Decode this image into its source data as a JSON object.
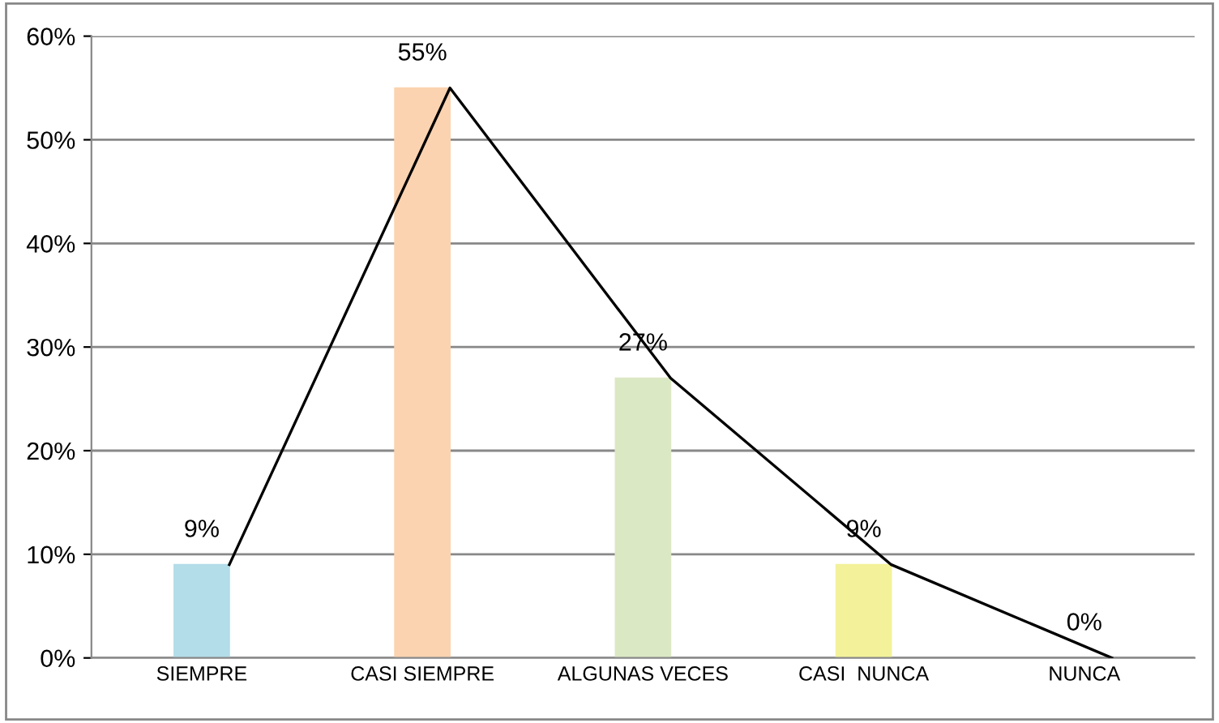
{
  "chart_data": {
    "type": "bar",
    "categories": [
      "SIEMPRE",
      "CASI SIEMPRE",
      "ALGUNAS VECES",
      "CASI  NUNCA",
      "NUNCA"
    ],
    "series": [
      {
        "colors": [
          "#b3dde8",
          "#fbd3b0",
          "#dbe8c4",
          "#f3f29a",
          "#ffffff"
        ],
        "values": [
          9,
          55,
          27,
          9,
          0
        ],
        "value_labels": [
          "9%",
          "55%",
          "27%",
          "9%",
          "0%"
        ]
      },
      {
        "type": "line",
        "color": "#000000",
        "values": [
          9,
          55,
          27,
          9,
          0
        ]
      }
    ],
    "ylim": [
      0,
      60
    ],
    "yticks": [
      {
        "value": 0,
        "label": "0%"
      },
      {
        "value": 10,
        "label": "10%"
      },
      {
        "value": 20,
        "label": "20%"
      },
      {
        "value": 30,
        "label": "30%"
      },
      {
        "value": 40,
        "label": "40%"
      },
      {
        "value": 50,
        "label": "50%"
      },
      {
        "value": 60,
        "label": "60%"
      }
    ],
    "grid": "y",
    "marker": "none",
    "line_style": "solid"
  }
}
